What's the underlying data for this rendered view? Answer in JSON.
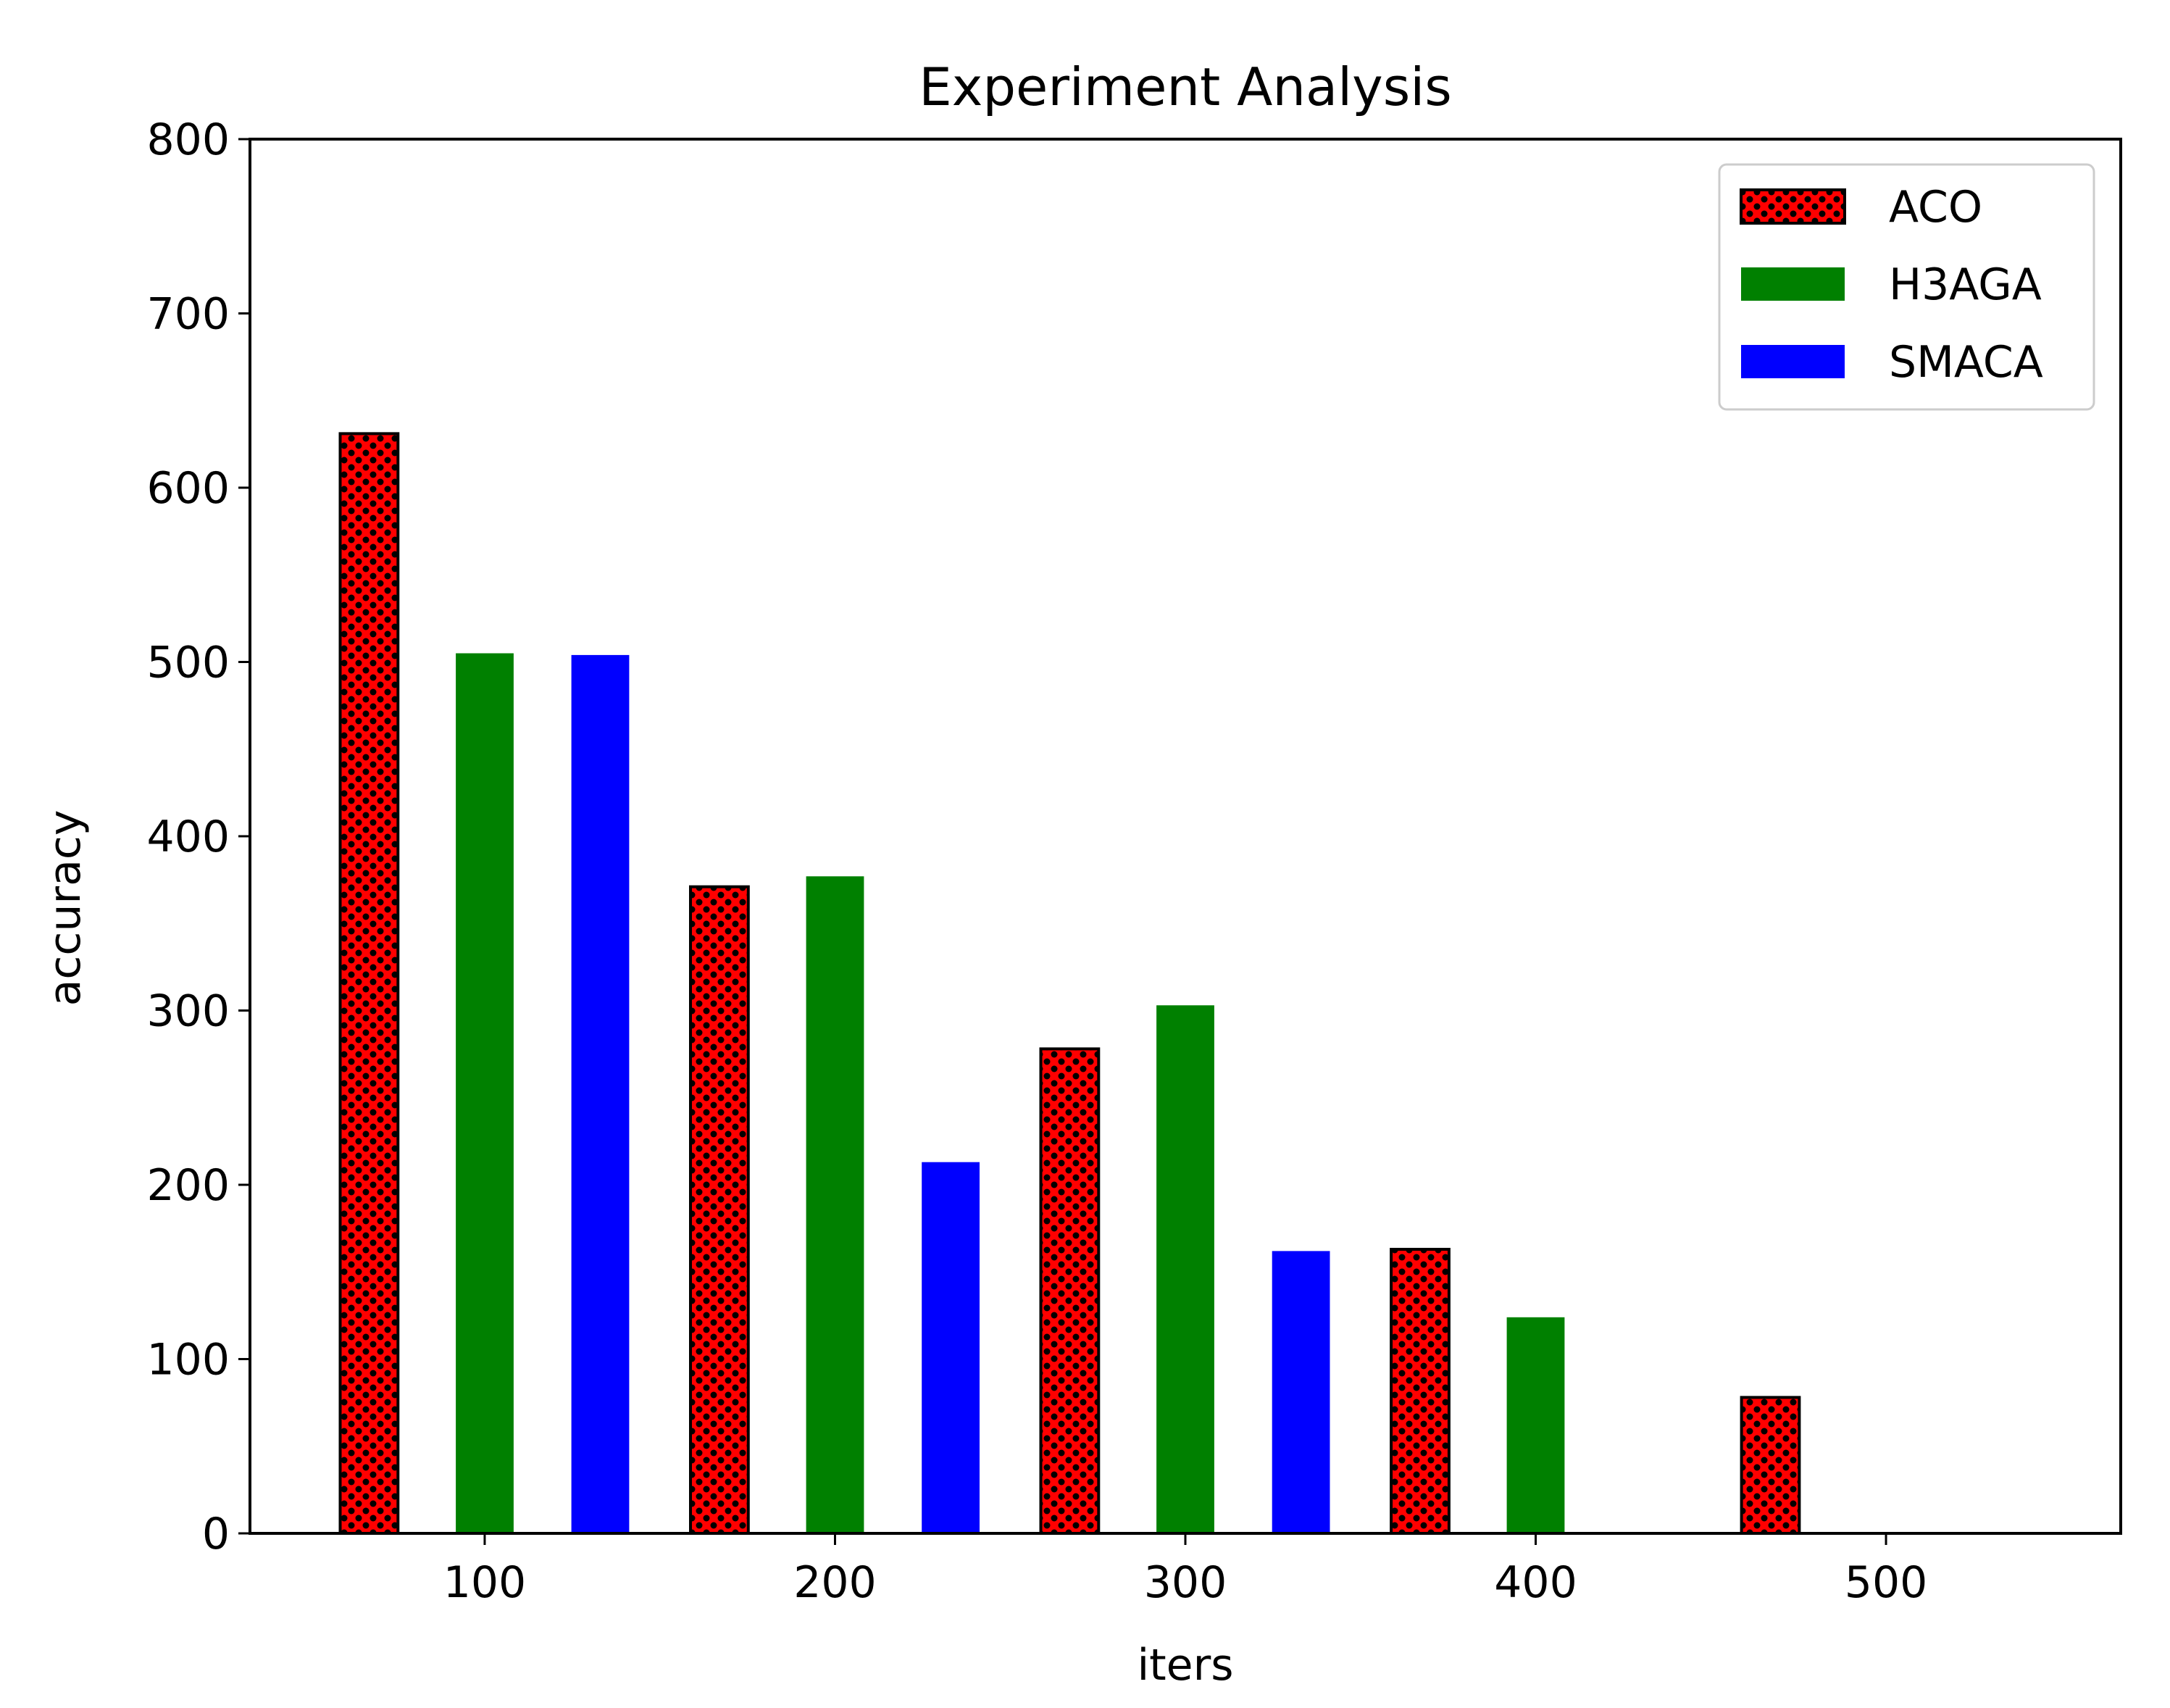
{
  "chart_data": {
    "type": "bar",
    "title": "Experiment Analysis",
    "xlabel": "iters",
    "ylabel": "accuracy",
    "x_ticks": [
      "100",
      "200",
      "300",
      "400",
      "500"
    ],
    "y_ticks": [
      "0",
      "100",
      "200",
      "300",
      "400",
      "500",
      "600",
      "700",
      "800"
    ],
    "xlim": [
      33,
      567
    ],
    "ylim": [
      0,
      800
    ],
    "grid": false,
    "legend_position": "top-right",
    "series": [
      {
        "name": "ACO",
        "color": "#ff0000",
        "hatch": "dots",
        "edgecolor": "#000000",
        "points": [
          {
            "x": 67,
            "y": 631
          },
          {
            "x": 167,
            "y": 371
          },
          {
            "x": 267,
            "y": 278
          },
          {
            "x": 367,
            "y": 163
          },
          {
            "x": 467,
            "y": 78
          }
        ]
      },
      {
        "name": "H3AGA",
        "color": "#008000",
        "points": [
          {
            "x": 100,
            "y": 505
          },
          {
            "x": 200,
            "y": 377
          },
          {
            "x": 300,
            "y": 303
          },
          {
            "x": 400,
            "y": 124
          }
        ]
      },
      {
        "name": "SMACA",
        "color": "#0000ff",
        "points": [
          {
            "x": 133,
            "y": 504
          },
          {
            "x": 233,
            "y": 213
          },
          {
            "x": 333,
            "y": 162
          }
        ]
      }
    ]
  }
}
